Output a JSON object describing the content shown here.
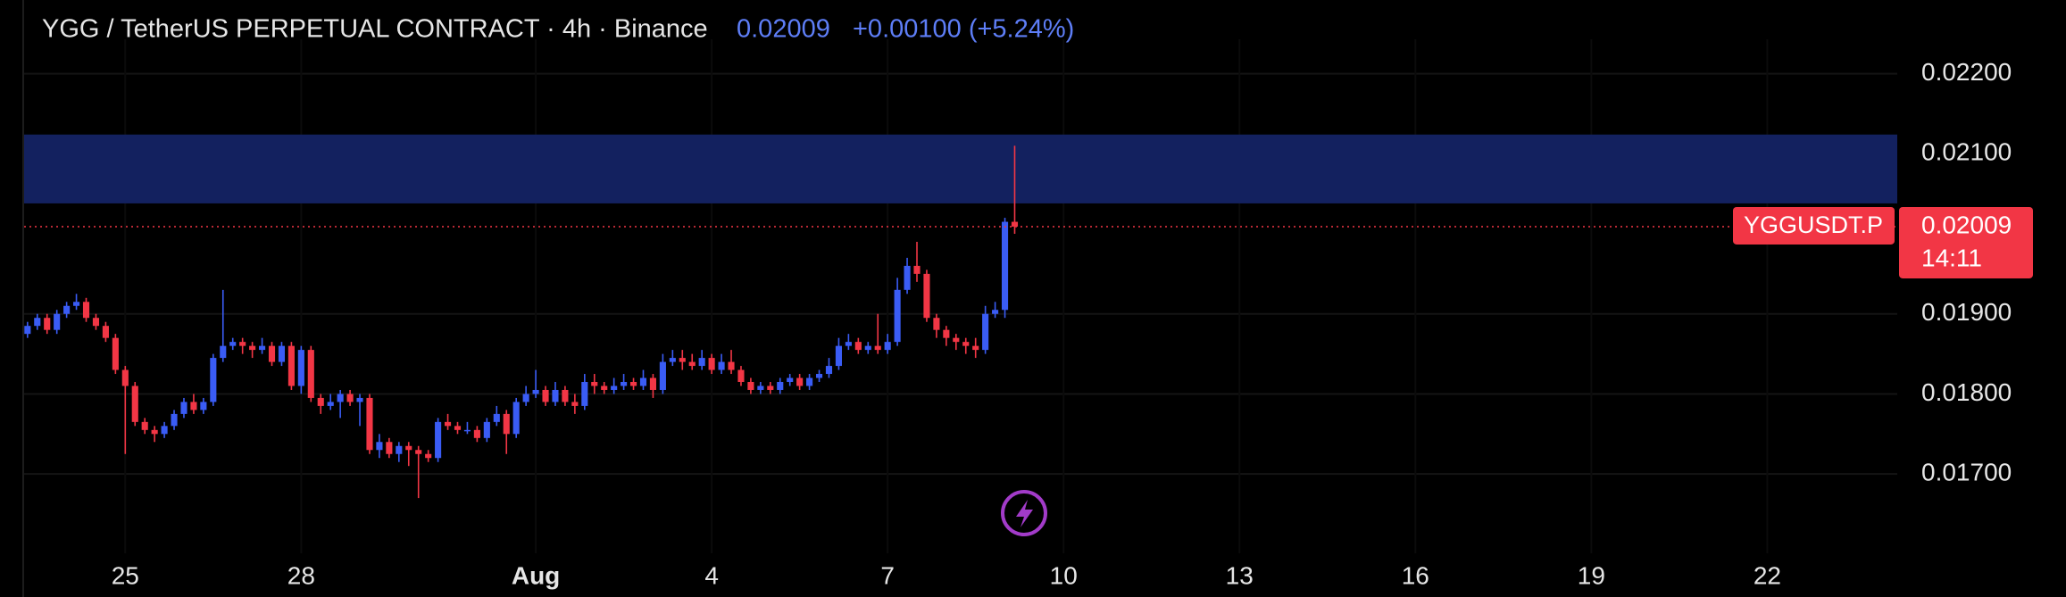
{
  "chart_data": {
    "type": "candlestick",
    "title": "YGG / TetherUS PERPETUAL CONTRACT · 4h · Binance",
    "change": "+0.00100 (+5.24%)",
    "symbol": "YGGUSDT.P",
    "countdown": "14:11",
    "up_color": "#3a5cf5",
    "down_color": "#f23645",
    "zone_color": "#13215f",
    "accent_color": "#5e7ef7",
    "grid": true,
    "zone": [
      0.02038,
      0.02124
    ],
    "xlim": [
      -0.35,
      191.3
    ],
    "ylim": [
      0.01601,
      0.02243
    ],
    "yticks": [
      {
        "value": 0.017,
        "label": "0.01700"
      },
      {
        "value": 0.018,
        "label": "0.01800"
      },
      {
        "value": 0.019,
        "label": "0.01900"
      },
      {
        "value": 0.021,
        "label": "0.02100"
      },
      {
        "value": 0.022,
        "label": "0.02200"
      }
    ],
    "xticks": [
      {
        "value": 10,
        "label": "25"
      },
      {
        "value": 28,
        "label": "28"
      },
      {
        "value": 52,
        "label": "Aug"
      },
      {
        "value": 70,
        "label": "4"
      },
      {
        "value": 88,
        "label": "7"
      },
      {
        "value": 106,
        "label": "10"
      },
      {
        "value": 124,
        "label": "13"
      },
      {
        "value": 142,
        "label": "16"
      },
      {
        "value": 160,
        "label": "19"
      },
      {
        "value": 178,
        "label": "22"
      }
    ],
    "open": [
      0.01875,
      0.01885,
      0.01895,
      0.0188,
      0.019,
      0.0191,
      0.01915,
      0.01895,
      0.01885,
      0.0187,
      0.0183,
      0.0181,
      0.01765,
      0.01755,
      0.0175,
      0.0176,
      0.01775,
      0.0179,
      0.0178,
      0.0179,
      0.01845,
      0.0186,
      0.01865,
      0.0186,
      0.01855,
      0.0186,
      0.0184,
      0.0186,
      0.0181,
      0.01855,
      0.01795,
      0.01785,
      0.0179,
      0.018,
      0.0179,
      0.01795,
      0.0173,
      0.0174,
      0.01725,
      0.01735,
      0.0173,
      0.01725,
      0.0172,
      0.01765,
      0.0176,
      0.01755,
      0.01755,
      0.01745,
      0.01765,
      0.01775,
      0.0175,
      0.0179,
      0.018,
      0.01805,
      0.0179,
      0.01805,
      0.0179,
      0.01785,
      0.01815,
      0.0181,
      0.01805,
      0.0181,
      0.01815,
      0.0181,
      0.0182,
      0.01805,
      0.0184,
      0.01845,
      0.0184,
      0.01835,
      0.01845,
      0.0183,
      0.0184,
      0.0183,
      0.01815,
      0.01805,
      0.0181,
      0.01805,
      0.01815,
      0.0182,
      0.0181,
      0.0182,
      0.01825,
      0.01835,
      0.0186,
      0.01865,
      0.01855,
      0.0186,
      0.01855,
      0.01865,
      0.0193,
      0.0196,
      0.0195,
      0.01895,
      0.0188,
      0.0187,
      0.01865,
      0.0186,
      0.01855,
      0.019,
      0.01905,
      0.02015
    ],
    "high": [
      0.0189,
      0.019,
      0.019,
      0.01905,
      0.01915,
      0.01925,
      0.0192,
      0.019,
      0.0189,
      0.01875,
      0.01835,
      0.01815,
      0.0177,
      0.0176,
      0.01765,
      0.0178,
      0.01795,
      0.018,
      0.01795,
      0.0185,
      0.0193,
      0.0187,
      0.0187,
      0.01865,
      0.0187,
      0.01865,
      0.01865,
      0.01865,
      0.0186,
      0.0186,
      0.018,
      0.018,
      0.01805,
      0.01805,
      0.018,
      0.018,
      0.0175,
      0.01745,
      0.0174,
      0.0174,
      0.01735,
      0.0173,
      0.0177,
      0.01775,
      0.01765,
      0.01765,
      0.0176,
      0.0177,
      0.01785,
      0.0178,
      0.01795,
      0.0181,
      0.0183,
      0.0181,
      0.01815,
      0.0181,
      0.018,
      0.01825,
      0.01825,
      0.01815,
      0.0182,
      0.01825,
      0.0182,
      0.0183,
      0.01825,
      0.0185,
      0.01855,
      0.01855,
      0.0185,
      0.01855,
      0.0185,
      0.0185,
      0.01855,
      0.01835,
      0.0182,
      0.01815,
      0.01815,
      0.0182,
      0.01825,
      0.01825,
      0.01825,
      0.0183,
      0.01845,
      0.0187,
      0.01875,
      0.0187,
      0.01865,
      0.019,
      0.01875,
      0.01945,
      0.0197,
      0.0199,
      0.01955,
      0.019,
      0.01885,
      0.01875,
      0.0187,
      0.0187,
      0.0191,
      0.01915,
      0.0202,
      0.0211
    ],
    "low": [
      0.0187,
      0.0188,
      0.01875,
      0.01875,
      0.01895,
      0.01905,
      0.0189,
      0.0188,
      0.01865,
      0.01825,
      0.01725,
      0.0176,
      0.0175,
      0.0174,
      0.01745,
      0.01755,
      0.0177,
      0.01775,
      0.01775,
      0.01785,
      0.0184,
      0.01855,
      0.0185,
      0.01845,
      0.0185,
      0.01835,
      0.01835,
      0.01805,
      0.018,
      0.0179,
      0.01775,
      0.0178,
      0.0177,
      0.01785,
      0.0176,
      0.01725,
      0.0172,
      0.0172,
      0.01715,
      0.0171,
      0.0167,
      0.01715,
      0.01715,
      0.01755,
      0.0175,
      0.0175,
      0.0174,
      0.0174,
      0.0176,
      0.01725,
      0.01745,
      0.01785,
      0.01795,
      0.01785,
      0.01785,
      0.01785,
      0.01775,
      0.0178,
      0.018,
      0.018,
      0.018,
      0.01805,
      0.01805,
      0.01805,
      0.01795,
      0.018,
      0.01835,
      0.0183,
      0.0183,
      0.0183,
      0.01825,
      0.01825,
      0.01825,
      0.0181,
      0.018,
      0.018,
      0.018,
      0.018,
      0.0181,
      0.01805,
      0.01805,
      0.01815,
      0.0182,
      0.0183,
      0.01855,
      0.0185,
      0.0185,
      0.0185,
      0.0185,
      0.0186,
      0.01925,
      0.0194,
      0.0189,
      0.0187,
      0.0186,
      0.01855,
      0.0185,
      0.01845,
      0.0185,
      0.01895,
      0.01895,
      0.02
    ],
    "close": [
      0.01885,
      0.01895,
      0.0188,
      0.019,
      0.0191,
      0.01915,
      0.01895,
      0.01885,
      0.0187,
      0.0183,
      0.0181,
      0.01765,
      0.01755,
      0.0175,
      0.0176,
      0.01775,
      0.0179,
      0.0178,
      0.0179,
      0.01845,
      0.0186,
      0.01865,
      0.0186,
      0.01855,
      0.0186,
      0.0184,
      0.0186,
      0.0181,
      0.01855,
      0.01795,
      0.01785,
      0.0179,
      0.018,
      0.0179,
      0.01795,
      0.0173,
      0.0174,
      0.01725,
      0.01735,
      0.0173,
      0.01725,
      0.0172,
      0.01765,
      0.0176,
      0.01755,
      0.01755,
      0.01745,
      0.01765,
      0.01775,
      0.0175,
      0.0179,
      0.018,
      0.01805,
      0.0179,
      0.01805,
      0.0179,
      0.01785,
      0.01815,
      0.0181,
      0.01805,
      0.0181,
      0.01815,
      0.0181,
      0.0182,
      0.01805,
      0.0184,
      0.01845,
      0.0184,
      0.01835,
      0.01845,
      0.0183,
      0.0184,
      0.0183,
      0.01815,
      0.01805,
      0.0181,
      0.01805,
      0.01815,
      0.0182,
      0.0181,
      0.0182,
      0.01825,
      0.01835,
      0.0186,
      0.01865,
      0.01855,
      0.0186,
      0.01855,
      0.01865,
      0.0193,
      0.0196,
      0.0195,
      0.01895,
      0.0188,
      0.0187,
      0.01865,
      0.0186,
      0.01855,
      0.019,
      0.01905,
      0.02015,
      0.02009
    ]
  }
}
